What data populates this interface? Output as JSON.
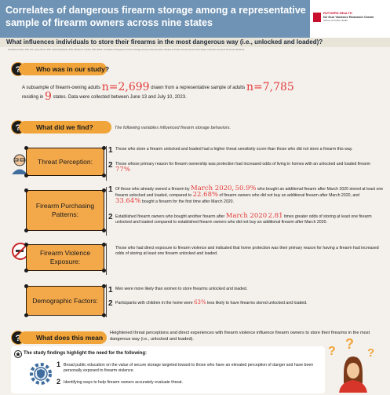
{
  "header": {
    "title": "Correlates of dangerous firearm storage among a representative sample of firearm owners across nine states",
    "logo_university": "RUTGERS HEALTH",
    "logo_center": "NJ Gun Violence Research Center",
    "logo_school": "School of Public Health"
  },
  "question": "What influences individuals to store their firearms in the most dangerous way (i.e., unlocked and loaded)?",
  "authors": "Anastasia Chudin, PhD, MA; Lacey Doran, PhD; Jared Sokolowski, PhD; Michael D. Anestis, PhD (2024). Correlates of Dangerous Firearm Storage among a Representative Sample of Firearm Owners Across Nine States. American Journal of Preventive Medicine.",
  "study": {
    "heading": "Who was in our study?",
    "line1_a": "A subsample of firearm-owning adults",
    "n_owners": "n=2,699",
    "line1_b": "drawn from a representative sample of adults",
    "n_total": "n=7,785",
    "line2_a": "residing in",
    "states": "9",
    "line2_b": "states. Data were collected between June 13 and July 10, 2023."
  },
  "found": {
    "heading": "What did we find?",
    "note": "The following variables influenced firearm storage behaviors."
  },
  "factors": [
    {
      "label": "Threat Perception:",
      "items": [
        {
          "num": "1",
          "text": "Those who store a firearm unlocked and loaded had a higher threat sensitivity score than those who did not store a firearm this way."
        },
        {
          "num": "2",
          "text_a": "Those whose primary reason for firearm ownership was protection had increased odds of living in homes with an unlocked and loaded firearm",
          "stat": "77%"
        }
      ]
    },
    {
      "label": "Firearm Purchasing Patterns:",
      "items": [
        {
          "num": "1",
          "text_a": "Of those who already owned a firearm by",
          "date1": "March 2020,",
          "pct1": "50.9%",
          "text_b": "who bought an additional firearm after March 2020 stored at least one firearm unlocked and loaded, compared to",
          "pct2": "22.68%",
          "text_c": "of firearm owners who did not buy an additional firearm after March 2020, and",
          "pct3": "33.64%",
          "text_d": "bought a firearm for the first time after March 2020."
        },
        {
          "num": "2",
          "text_a": "Established firearm owners who bought another firearm after",
          "date2": "March 2020",
          "odds": "2.81",
          "text_b": "times greater odds of storing at least one firearm unlocked and loaded compared to established firearm owners who did not buy an additional firearm after March 2020."
        }
      ]
    },
    {
      "label": "Firearm Violence Exposure:",
      "items": [
        {
          "num": "",
          "text": "Those who had direct exposure to firearm violence and indicated that home protection was their primary reason for having a firearm had increased odds of storing at least one firearm unlocked and loaded."
        }
      ]
    },
    {
      "label": "Demographic Factors:",
      "items": [
        {
          "num": "1",
          "text": "Men were more likely than women to store firearms unlocked and loaded."
        },
        {
          "num": "2",
          "text_a": "Participants with children in the home were",
          "stat": "63%",
          "text_b": "less likely to have firearms stored unlocked and loaded."
        }
      ]
    }
  ],
  "meaning": {
    "heading": "What does this mean",
    "text": "Heightened threat perceptions and direct experiences with firearm violence influence firearm owners to store their firearms in the most dangerous way (i.e., unlocked and loaded)."
  },
  "needs": {
    "title": "The study findings highlight the need for the following:",
    "items": [
      {
        "num": "1",
        "text": "Broad public education on the value of secure storage targeted toward to those who have an elevated perception of danger and have been personally exposed to firearm violence."
      },
      {
        "num": "2",
        "text": "Identifying ways to help firearm owners accurately evaluate threat."
      }
    ]
  },
  "colors": {
    "title_band": "#6f93b4",
    "accent_orange": "#f0a43a",
    "highlight_red": "#e23c3c",
    "card": "#f3a84a"
  }
}
